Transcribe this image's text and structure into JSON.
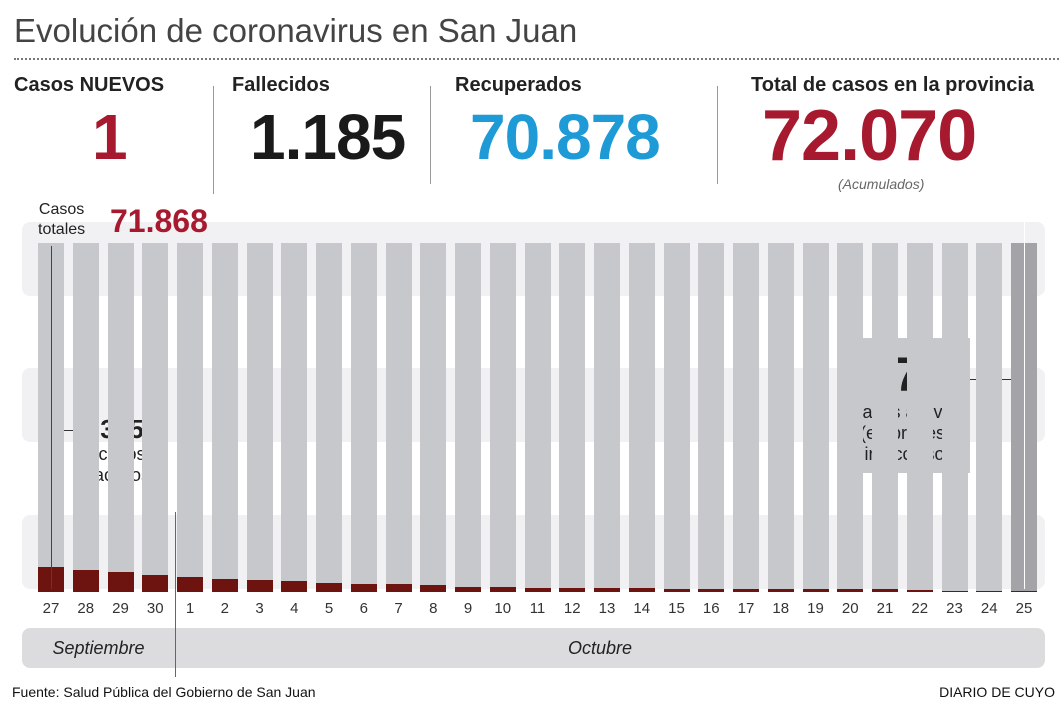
{
  "title": "Evolución de coronavirus en San Juan",
  "stats": [
    {
      "label": "Casos NUEVOS",
      "value": "1",
      "color": "#a6192e"
    },
    {
      "label": "Fallecidos",
      "value": "1.185",
      "color": "#1a1a1a"
    },
    {
      "label": "Recuperados",
      "value": "70.878",
      "color": "#1e9ad6"
    },
    {
      "label": "Total de casos en la provincia",
      "value": "72.070",
      "color": "#a6192e",
      "note": "(Acumulados)"
    }
  ],
  "chart_data": {
    "type": "bar",
    "title": "Evolución de coronavirus en San Juan",
    "categories": [
      "27",
      "28",
      "29",
      "30",
      "1",
      "2",
      "3",
      "4",
      "5",
      "6",
      "7",
      "8",
      "9",
      "10",
      "11",
      "12",
      "13",
      "14",
      "15",
      "16",
      "17",
      "18",
      "19",
      "20",
      "21",
      "22",
      "23",
      "24",
      "25"
    ],
    "series": [
      {
        "name": "casos activos",
        "color": "#6e1410",
        "values": [
          325,
          285,
          255,
          220,
          195,
          170,
          155,
          140,
          115,
          100,
          100,
          85,
          70,
          65,
          55,
          50,
          48,
          47,
          45,
          45,
          42,
          42,
          42,
          42,
          42,
          20,
          15,
          12,
          7
        ]
      }
    ],
    "total_series_label": "Casos totales",
    "months": [
      {
        "label": "Septiembre"
      },
      {
        "label": "Octubre"
      }
    ],
    "annotations": {
      "start_total_label1": "Casos",
      "start_total_label2": "totales",
      "start_total": "71.868",
      "start_active": "325",
      "start_active_l1": "casos",
      "start_active_l2": "activos",
      "end_active": "7",
      "end_l1": "casos activos",
      "end_l2": "(en proceso",
      "end_l3": "infeccioso)"
    },
    "ylim": [
      0,
      4500
    ]
  },
  "footer": {
    "source": "Fuente: Salud Pública del Gobierno de San Juan",
    "brand": "DIARIO DE CUYO"
  }
}
